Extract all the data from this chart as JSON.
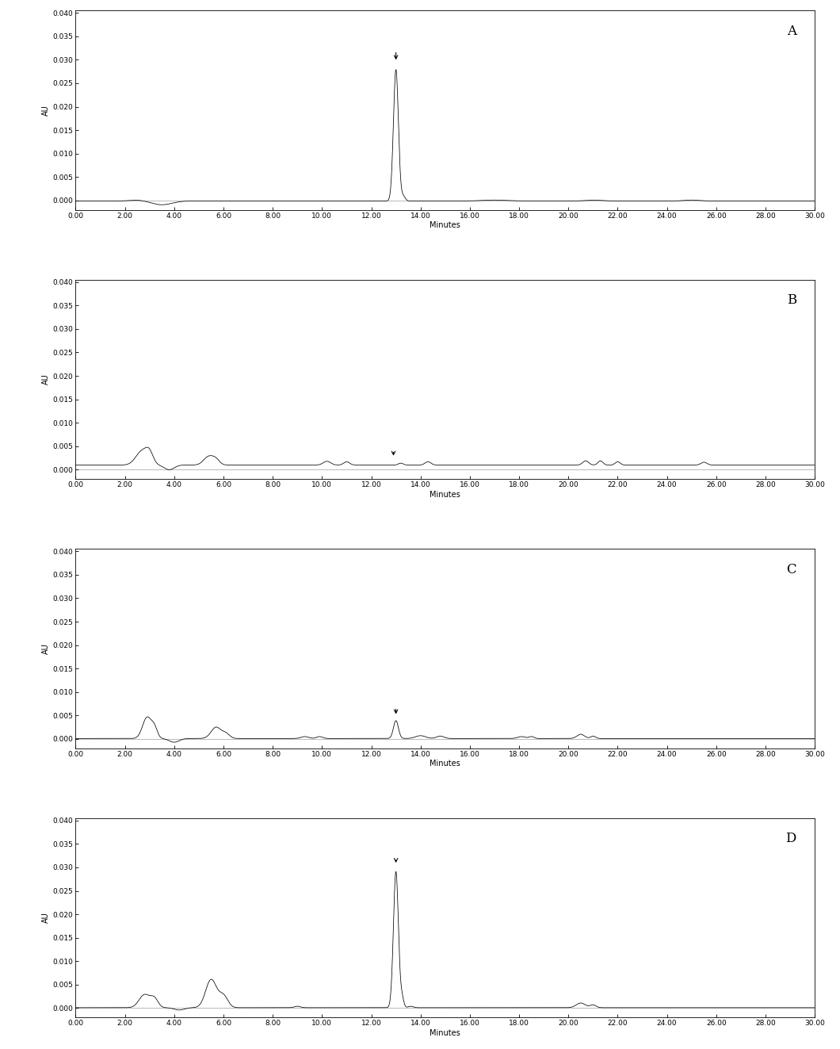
{
  "panels": [
    "A",
    "B",
    "C",
    "D"
  ],
  "xlim": [
    0.0,
    30.0
  ],
  "ylim": [
    -0.002,
    0.0405
  ],
  "xlabel": "Minutes",
  "ylabel": "AU",
  "yticks": [
    0.0,
    0.005,
    0.01,
    0.015,
    0.02,
    0.025,
    0.03,
    0.035,
    0.04
  ],
  "xticks": [
    0.0,
    2.0,
    4.0,
    6.0,
    8.0,
    10.0,
    12.0,
    14.0,
    16.0,
    18.0,
    20.0,
    22.0,
    24.0,
    26.0,
    28.0,
    30.0
  ],
  "line_color": "#000000",
  "background_color": "#ffffff",
  "label_fontsize": 7,
  "tick_fontsize": 6.5
}
